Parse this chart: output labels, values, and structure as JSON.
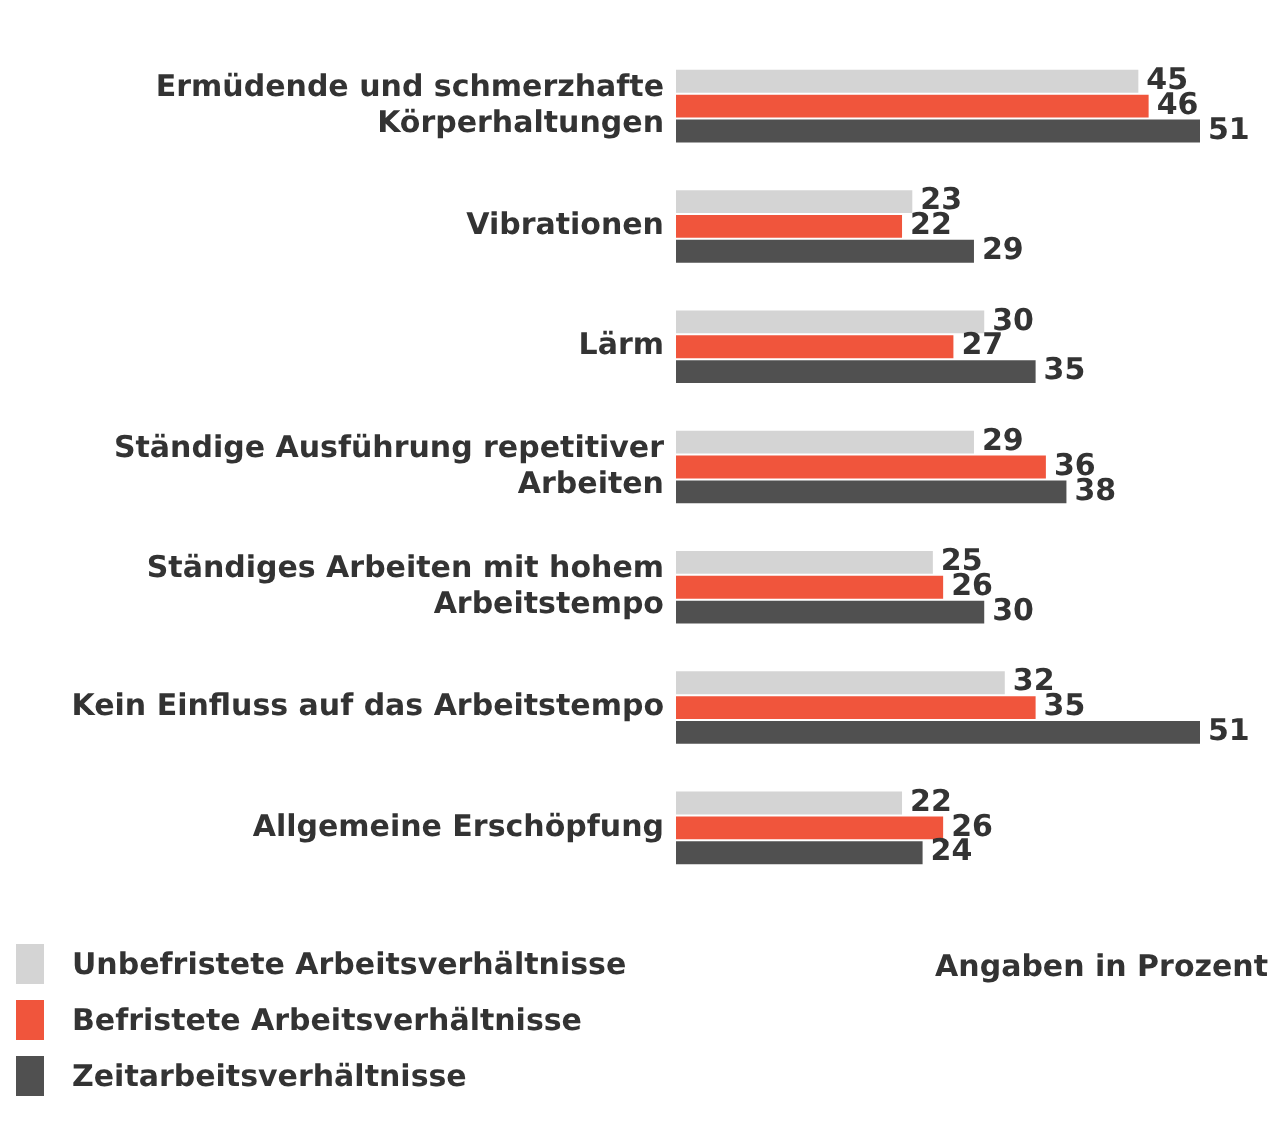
{
  "chart_data": {
    "type": "bar",
    "orientation": "horizontal",
    "data_labels": true,
    "legend": "bottom left",
    "grid": false,
    "categories": [
      "Ermüdende und schmerzhafte Körperhaltungen",
      "Vibrationen",
      "Lärm",
      "Ständige Ausführung repetitiver Arbeiten",
      "Ständiges Arbeiten mit hohem Arbeitstempo",
      "Kein Einfluss auf das Arbeitstempo",
      "Allgemeine Erschöpfung"
    ],
    "series": [
      {
        "name": "Unbefristete Arbeitsverhältnisse",
        "color": "#d4d4d4",
        "values": [
          45,
          23,
          30,
          29,
          25,
          32,
          22
        ]
      },
      {
        "name": "Befristete Arbeitsverhältnisse",
        "color": "#f0553c",
        "values": [
          46,
          22,
          27,
          36,
          26,
          35,
          26
        ]
      },
      {
        "name": "Zeitarbeitsverhältnisse",
        "color": "#505050",
        "values": [
          51,
          29,
          35,
          38,
          30,
          51,
          24
        ]
      }
    ],
    "annotations": [
      "Angaben in Prozent"
    ]
  }
}
